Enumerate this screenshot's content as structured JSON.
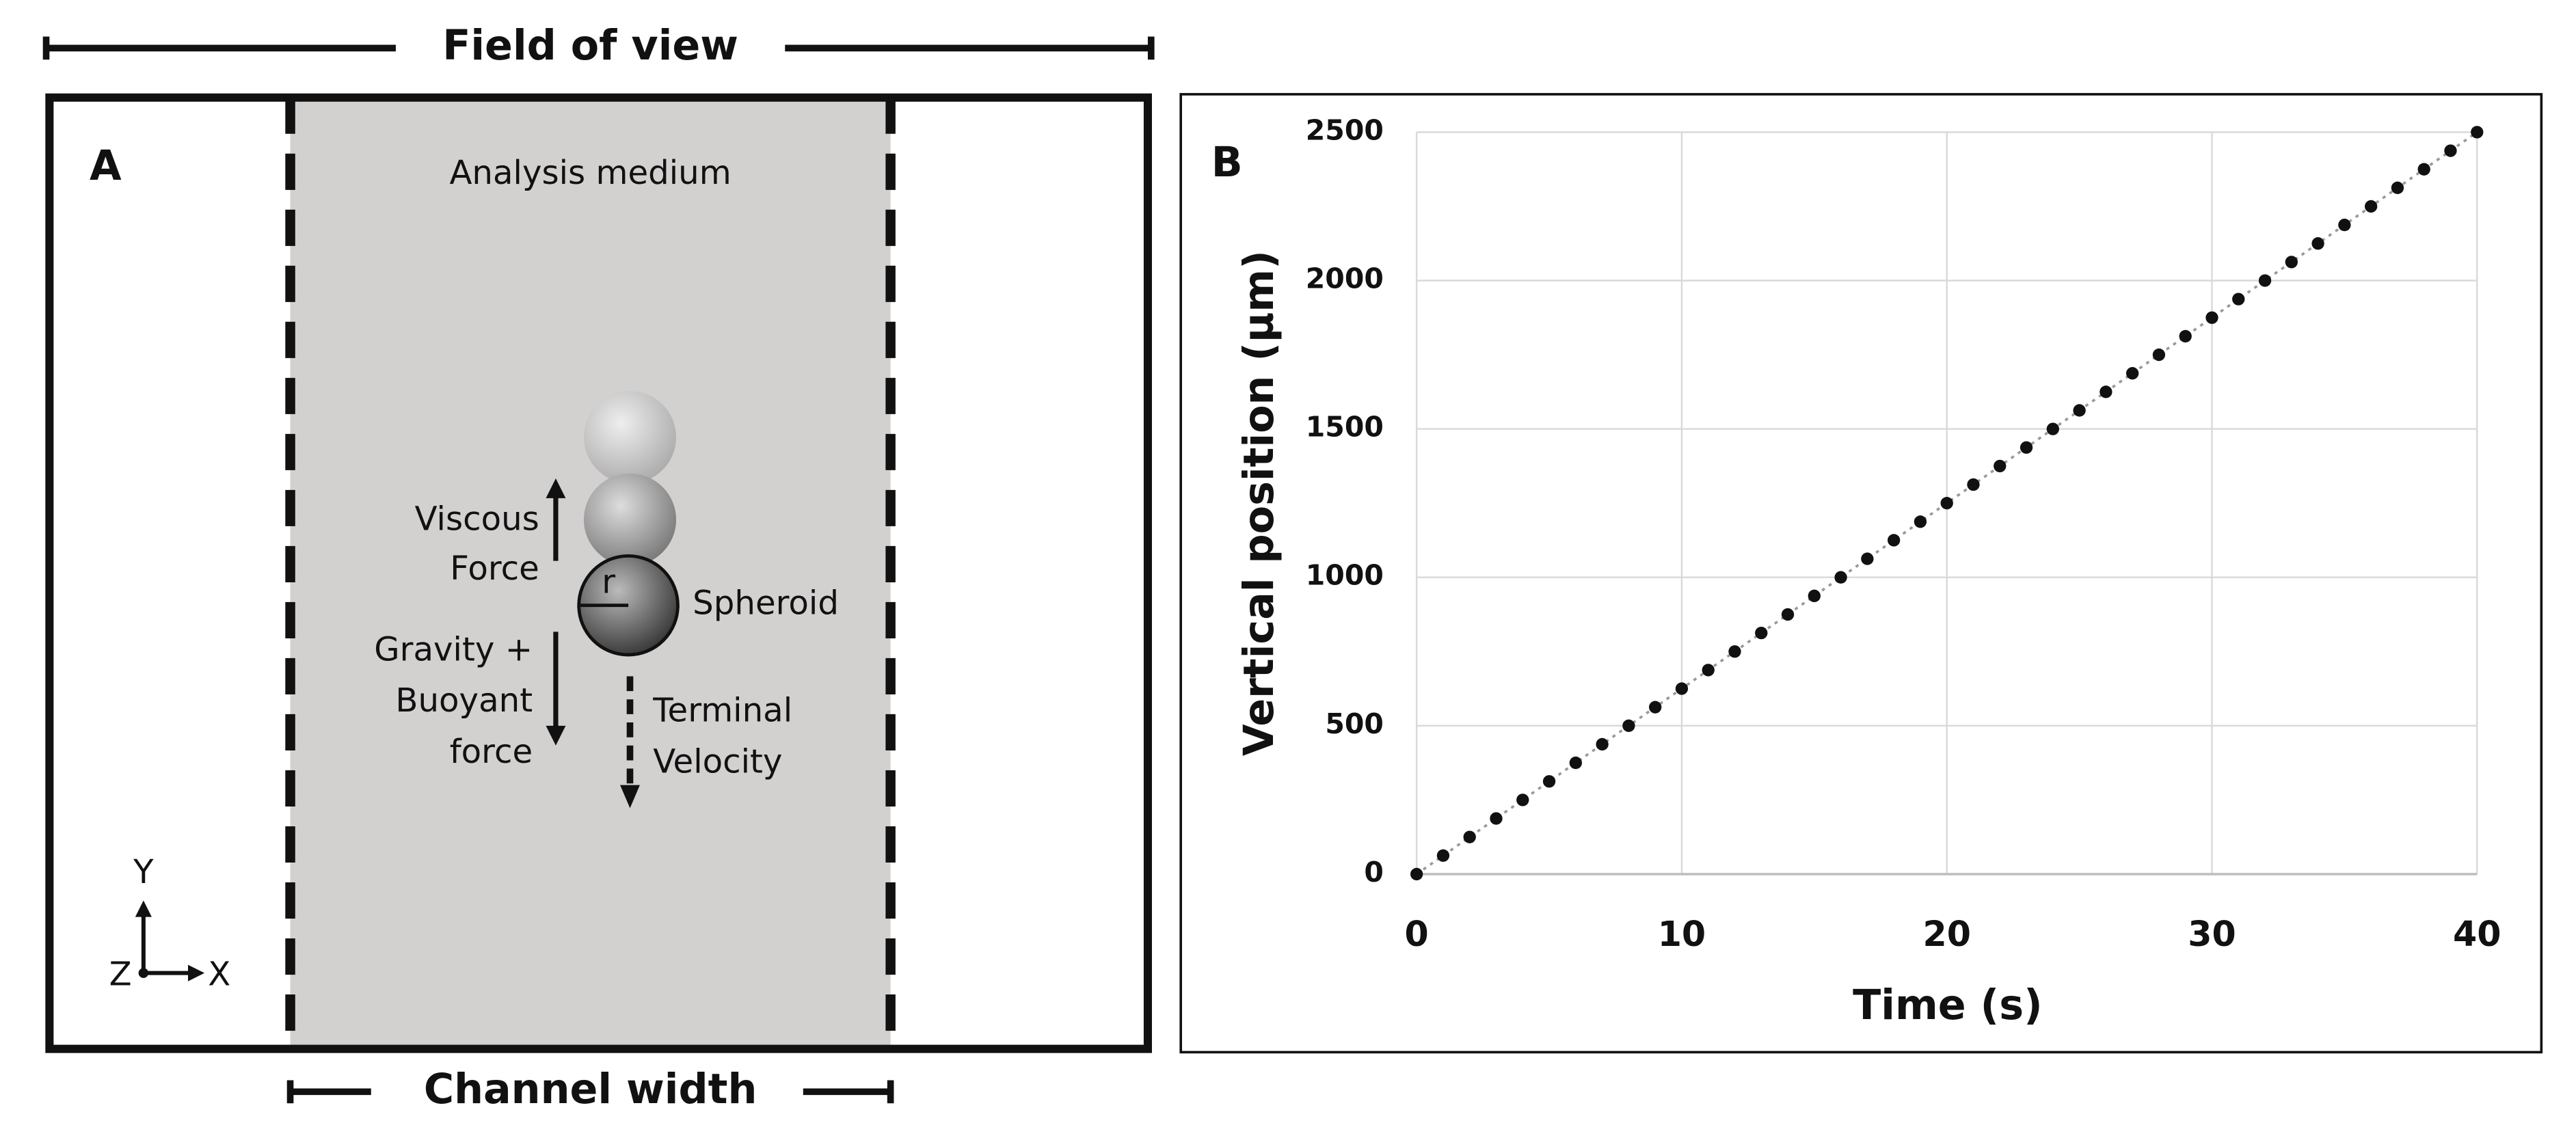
{
  "diagram": {
    "field_of_view": "Field of view",
    "panel_label": "A",
    "medium": "Analysis medium",
    "viscous_force": [
      "Viscous",
      "Force"
    ],
    "radius": "r",
    "spheroid": "Spheroid",
    "gravity_buoyant": [
      "Gravity +",
      "Buoyant",
      "force"
    ],
    "terminal_velocity": [
      "Terminal",
      "Velocity"
    ],
    "axes": {
      "y": "Y",
      "z": "Z",
      "x": "X"
    },
    "channel_width": "Channel width"
  },
  "chart_data": {
    "type": "scatter",
    "panel_label": "B",
    "xlabel": "Time (s)",
    "ylabel": "Vertical position (µm)",
    "x": [
      0,
      1,
      2,
      3,
      4,
      5,
      6,
      7,
      8,
      9,
      10,
      11,
      12,
      13,
      14,
      15,
      16,
      17,
      18,
      19,
      20,
      21,
      22,
      23,
      24,
      25,
      26,
      27,
      28,
      29,
      30,
      31,
      32,
      33,
      34,
      35,
      36,
      37,
      38,
      39,
      40
    ],
    "series": [
      {
        "color": "#111111",
        "line_color": "#9a9a9a",
        "values": [
          0,
          62.5,
          125,
          187.5,
          250,
          312.5,
          375,
          437.5,
          500,
          562.5,
          625,
          687.5,
          750,
          812.5,
          875,
          937.5,
          1000,
          1062.5,
          1125,
          1187.5,
          1250,
          1312.5,
          1375,
          1437.5,
          1500,
          1562.5,
          1625,
          1687.5,
          1750,
          1812.5,
          1875,
          1937.5,
          2000,
          2062.5,
          2125,
          2187.5,
          2250,
          2312.5,
          2375,
          2437.5,
          2500
        ]
      }
    ],
    "xlim": [
      0,
      40
    ],
    "xticks": [
      0,
      10,
      20,
      30,
      40
    ],
    "ylim": [
      0,
      2500
    ],
    "yticks": [
      0,
      500,
      1000,
      1500,
      2000,
      2500
    ],
    "grid": true
  }
}
